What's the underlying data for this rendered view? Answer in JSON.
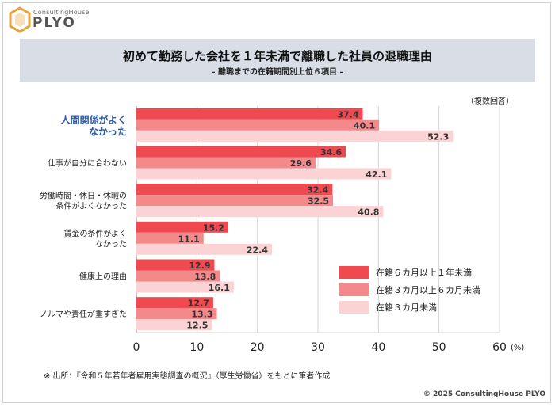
{
  "header": {
    "logo_sub": "ConsultingHouse",
    "logo_main": "PLYO",
    "title": "初めて勤務した会社を１年未満で離職した社員の退職理由",
    "subtitle": "– 離職までの在籍期間別上位６項目 –",
    "note": "（複数回答）"
  },
  "footer": {
    "source": "※ 出所：『令和５年若年者雇用実態調査の概況』（厚生労働省）をもとに筆者作成",
    "copyright": "© 2025 ConsultingHouse PLYO"
  },
  "chart_data": {
    "type": "bar",
    "orientation": "horizontal",
    "categories": [
      [
        "人間関係がよく",
        "なかった"
      ],
      [
        "仕事が自分に合わない"
      ],
      [
        "労働時間・休日・休暇の",
        "条件がよくなかった"
      ],
      [
        "賃金の条件がよく",
        "なかった"
      ],
      [
        "健康上の理由"
      ],
      [
        "ノルマや責任が重すぎた"
      ]
    ],
    "highlight_category": 0,
    "series": [
      {
        "name": "在籍６カ月以上１年未満",
        "color": "#f0494f",
        "values": [
          37.4,
          34.6,
          32.4,
          15.2,
          12.9,
          12.7
        ]
      },
      {
        "name": "在籍３カ月以上６カ月未満",
        "color": "#f4898c",
        "values": [
          40.1,
          29.6,
          32.5,
          11.1,
          13.8,
          13.3
        ]
      },
      {
        "name": "在籍３カ月未満",
        "color": "#fbd3d4",
        "values": [
          52.3,
          42.1,
          40.8,
          22.4,
          16.1,
          12.5
        ]
      }
    ],
    "xlim": [
      0,
      60
    ],
    "xticks": [
      0,
      10,
      20,
      30,
      40,
      50,
      60
    ],
    "unit": "(%)",
    "grid": true,
    "legend_position": "bottom-right"
  }
}
